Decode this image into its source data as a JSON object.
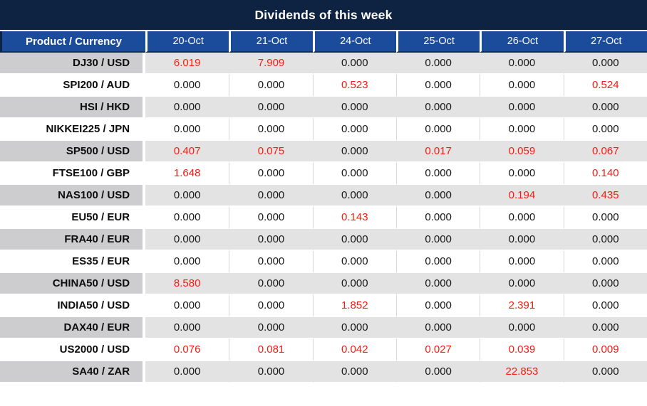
{
  "colors": {
    "title_bar_bg": "#0e2342",
    "header_bg": "#1b4b9b",
    "header_text": "#ffffff",
    "row_gray_label_bg": "#cdcdd0",
    "row_gray_value_bg": "#e3e3e3",
    "row_white_bg": "#ffffff",
    "value_text": "#161616",
    "product_text": "#0d0d0d",
    "nonzero_value_text": "#fa1a10"
  },
  "chart_data": {
    "type": "table",
    "title": "Dividends of this week",
    "columns": [
      "Product / Currency",
      "20-Oct",
      "21-Oct",
      "24-Oct",
      "25-Oct",
      "26-Oct",
      "27-Oct"
    ],
    "highlight_rule": "non-zero dividend values are rendered in red",
    "rows": [
      {
        "product": "DJ30 / USD",
        "values": [
          "6.019",
          "7.909",
          "0.000",
          "0.000",
          "0.000",
          "0.000"
        ]
      },
      {
        "product": "SPI200 / AUD",
        "values": [
          "0.000",
          "0.000",
          "0.523",
          "0.000",
          "0.000",
          "0.524"
        ]
      },
      {
        "product": "HSI / HKD",
        "values": [
          "0.000",
          "0.000",
          "0.000",
          "0.000",
          "0.000",
          "0.000"
        ]
      },
      {
        "product": "NIKKEI225 / JPN",
        "values": [
          "0.000",
          "0.000",
          "0.000",
          "0.000",
          "0.000",
          "0.000"
        ]
      },
      {
        "product": "SP500 / USD",
        "values": [
          "0.407",
          "0.075",
          "0.000",
          "0.017",
          "0.059",
          "0.067"
        ]
      },
      {
        "product": "FTSE100 / GBP",
        "values": [
          "1.648",
          "0.000",
          "0.000",
          "0.000",
          "0.000",
          "0.140"
        ]
      },
      {
        "product": "NAS100 / USD",
        "values": [
          "0.000",
          "0.000",
          "0.000",
          "0.000",
          "0.194",
          "0.435"
        ]
      },
      {
        "product": "EU50 / EUR",
        "values": [
          "0.000",
          "0.000",
          "0.143",
          "0.000",
          "0.000",
          "0.000"
        ]
      },
      {
        "product": "FRA40 / EUR",
        "values": [
          "0.000",
          "0.000",
          "0.000",
          "0.000",
          "0.000",
          "0.000"
        ]
      },
      {
        "product": "ES35 / EUR",
        "values": [
          "0.000",
          "0.000",
          "0.000",
          "0.000",
          "0.000",
          "0.000"
        ]
      },
      {
        "product": "CHINA50 / USD",
        "values": [
          "8.580",
          "0.000",
          "0.000",
          "0.000",
          "0.000",
          "0.000"
        ]
      },
      {
        "product": "INDIA50 / USD",
        "values": [
          "0.000",
          "0.000",
          "1.852",
          "0.000",
          "2.391",
          "0.000"
        ]
      },
      {
        "product": "DAX40 / EUR",
        "values": [
          "0.000",
          "0.000",
          "0.000",
          "0.000",
          "0.000",
          "0.000"
        ]
      },
      {
        "product": "US2000 / USD",
        "values": [
          "0.076",
          "0.081",
          "0.042",
          "0.027",
          "0.039",
          "0.009"
        ]
      },
      {
        "product": "SA40 / ZAR",
        "values": [
          "0.000",
          "0.000",
          "0.000",
          "0.000",
          "22.853",
          "0.000"
        ]
      }
    ]
  }
}
